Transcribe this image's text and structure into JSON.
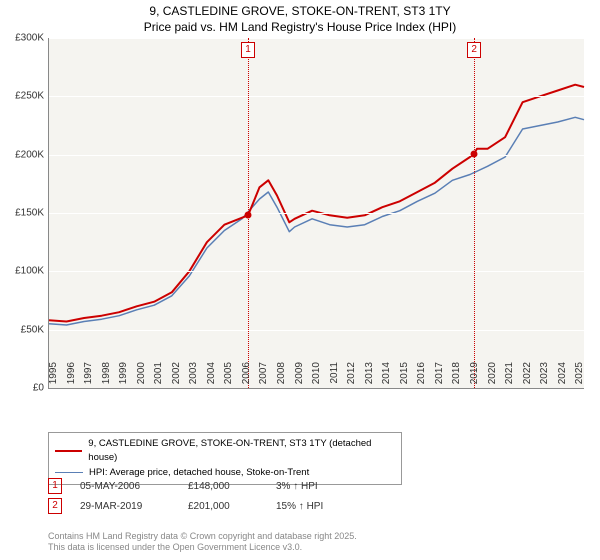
{
  "title": {
    "line1": "9, CASTLEDINE GROVE, STOKE-ON-TRENT, ST3 1TY",
    "line2": "Price paid vs. HM Land Registry's House Price Index (HPI)"
  },
  "chart": {
    "type": "line",
    "background_color": "#f5f4f0",
    "grid_color": "#ffffff",
    "axis_color": "#888888",
    "ylim": [
      0,
      300000
    ],
    "ytick_step": 50000,
    "y_ticks": [
      "£0",
      "£50K",
      "£100K",
      "£150K",
      "£200K",
      "£250K",
      "£300K"
    ],
    "xlim": [
      1995,
      2025.5
    ],
    "x_ticks": [
      1995,
      1996,
      1997,
      1998,
      1999,
      2000,
      2001,
      2002,
      2003,
      2004,
      2005,
      2006,
      2007,
      2008,
      2009,
      2010,
      2011,
      2012,
      2013,
      2014,
      2015,
      2016,
      2017,
      2018,
      2019,
      2020,
      2021,
      2022,
      2023,
      2024,
      2025
    ],
    "series": [
      {
        "name": "property",
        "label": "9, CASTLEDINE GROVE, STOKE-ON-TRENT, ST3 1TY (detached house)",
        "color": "#cc0000",
        "stroke_width": 2,
        "points": [
          [
            1995,
            58000
          ],
          [
            1996,
            57000
          ],
          [
            1997,
            60000
          ],
          [
            1998,
            62000
          ],
          [
            1999,
            65000
          ],
          [
            2000,
            70000
          ],
          [
            2001,
            74000
          ],
          [
            2002,
            82000
          ],
          [
            2003,
            100000
          ],
          [
            2004,
            125000
          ],
          [
            2005,
            140000
          ],
          [
            2006.35,
            148000
          ],
          [
            2007,
            172000
          ],
          [
            2007.5,
            178000
          ],
          [
            2008,
            165000
          ],
          [
            2008.7,
            142000
          ],
          [
            2009,
            145000
          ],
          [
            2010,
            152000
          ],
          [
            2011,
            148000
          ],
          [
            2012,
            146000
          ],
          [
            2013,
            148000
          ],
          [
            2014,
            155000
          ],
          [
            2015,
            160000
          ],
          [
            2016,
            168000
          ],
          [
            2017,
            176000
          ],
          [
            2018,
            188000
          ],
          [
            2019,
            198000
          ],
          [
            2019.24,
            201000
          ],
          [
            2019.4,
            205000
          ],
          [
            2020,
            205000
          ],
          [
            2021,
            215000
          ],
          [
            2022,
            245000
          ],
          [
            2023,
            250000
          ],
          [
            2024,
            255000
          ],
          [
            2025,
            260000
          ],
          [
            2025.5,
            258000
          ]
        ]
      },
      {
        "name": "hpi",
        "label": "HPI: Average price, detached house, Stoke-on-Trent",
        "color": "#5a7fb5",
        "stroke_width": 1.5,
        "points": [
          [
            1995,
            55000
          ],
          [
            1996,
            54000
          ],
          [
            1997,
            57000
          ],
          [
            1998,
            59000
          ],
          [
            1999,
            62000
          ],
          [
            2000,
            67000
          ],
          [
            2001,
            71000
          ],
          [
            2002,
            79000
          ],
          [
            2003,
            96000
          ],
          [
            2004,
            120000
          ],
          [
            2005,
            135000
          ],
          [
            2006,
            145000
          ],
          [
            2007,
            162000
          ],
          [
            2007.5,
            168000
          ],
          [
            2008,
            155000
          ],
          [
            2008.7,
            134000
          ],
          [
            2009,
            138000
          ],
          [
            2010,
            145000
          ],
          [
            2011,
            140000
          ],
          [
            2012,
            138000
          ],
          [
            2013,
            140000
          ],
          [
            2014,
            147000
          ],
          [
            2015,
            152000
          ],
          [
            2016,
            160000
          ],
          [
            2017,
            167000
          ],
          [
            2018,
            178000
          ],
          [
            2019,
            183000
          ],
          [
            2020,
            190000
          ],
          [
            2021,
            198000
          ],
          [
            2022,
            222000
          ],
          [
            2023,
            225000
          ],
          [
            2024,
            228000
          ],
          [
            2025,
            232000
          ],
          [
            2025.5,
            230000
          ]
        ]
      }
    ],
    "markers": [
      {
        "n": "1",
        "x": 2006.35,
        "y": 148000
      },
      {
        "n": "2",
        "x": 2019.24,
        "y": 201000
      }
    ]
  },
  "legend": {
    "items": [
      {
        "color": "#cc0000",
        "width": 2,
        "label_key": "chart.series.0.label"
      },
      {
        "color": "#5a7fb5",
        "width": 1.5,
        "label_key": "chart.series.1.label"
      }
    ]
  },
  "price_rows": [
    {
      "n": "1",
      "date": "05-MAY-2006",
      "price": "£148,000",
      "pct": "3% ↑ HPI"
    },
    {
      "n": "2",
      "date": "29-MAR-2019",
      "price": "£201,000",
      "pct": "15% ↑ HPI"
    }
  ],
  "footer": {
    "line1": "Contains HM Land Registry data © Crown copyright and database right 2025.",
    "line2": "This data is licensed under the Open Government Licence v3.0."
  }
}
